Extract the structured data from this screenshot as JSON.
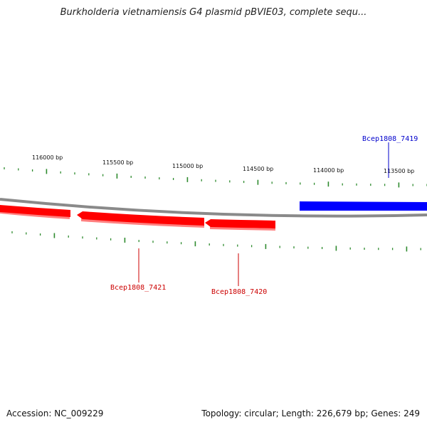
{
  "title": "Burkholderia vietnamiensis G4 plasmid pBVIE03, complete sequ...",
  "footer": {
    "accession": "Accession: NC_009229",
    "summary": "Topology: circular; Length: 226,679 bp; Genes: 249"
  },
  "colors": {
    "backbone": "#8a8a8a",
    "ticks": "#2e8b2e",
    "reverse_gene": "#ff0000",
    "reverse_gene_shadow": "#ff8080",
    "forward_gene": "#0000ff",
    "reverse_label": "#cc0000",
    "forward_label": "#0000cc"
  },
  "scale": {
    "labels": [
      "116000 bp",
      "115500 bp",
      "115000 bp",
      "114500 bp",
      "114000 bp",
      "113500 bp"
    ]
  },
  "genes": [
    {
      "name": "Bcep1808_7421",
      "strand": "-"
    },
    {
      "name": "Bcep1808_7420",
      "strand": "-"
    },
    {
      "name": "Bcep1808_7419",
      "strand": "+"
    }
  ]
}
